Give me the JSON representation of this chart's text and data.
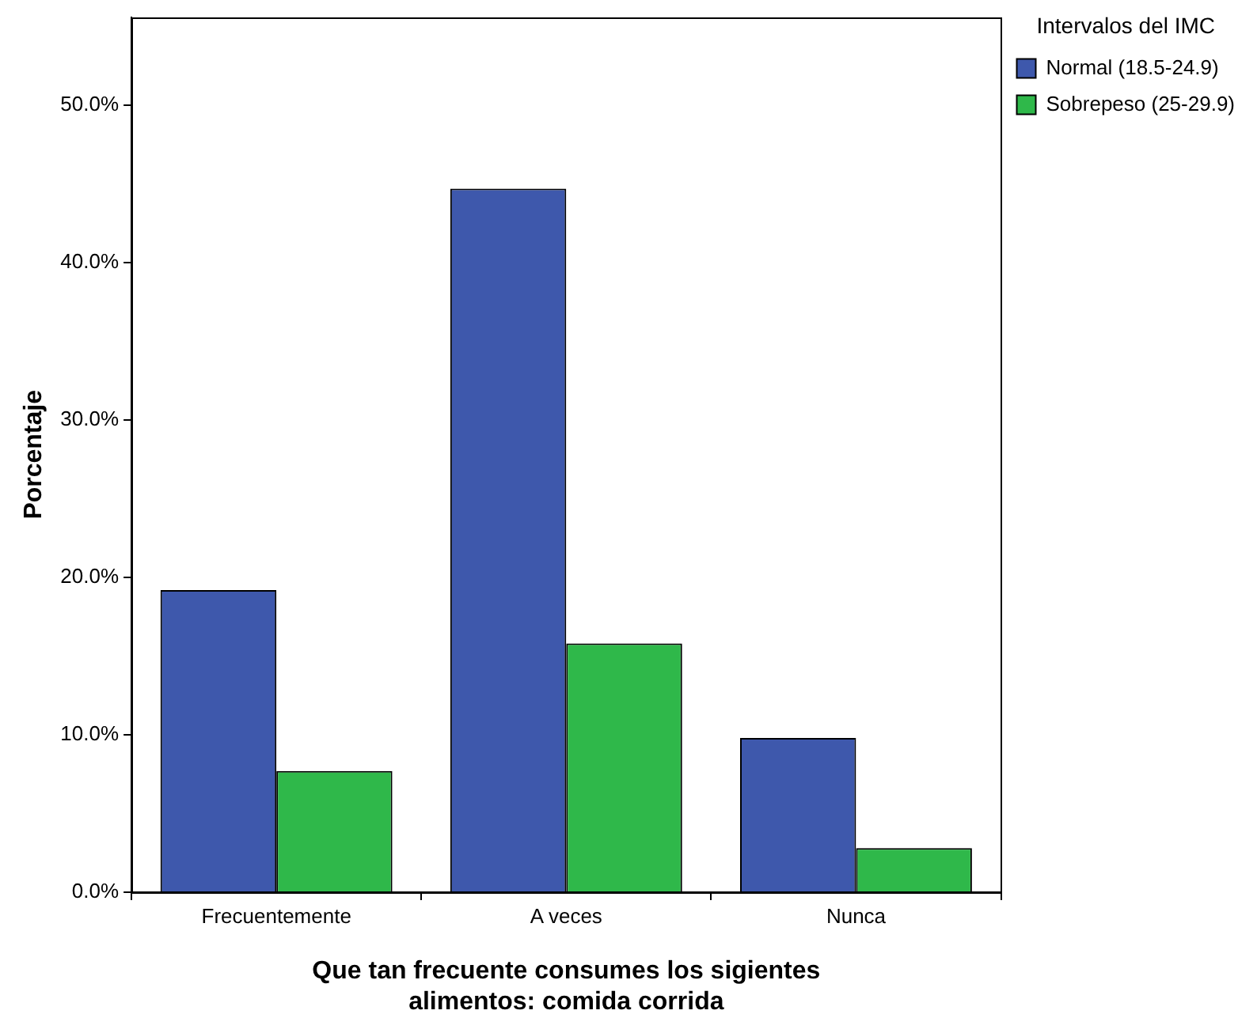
{
  "chart_data": {
    "type": "bar",
    "xlabel": "Que tan frecuente consumes los sigientes\nalimentos: comida corrida",
    "ylabel": "Porcentaje",
    "legend_title": "Intervalos del IMC",
    "categories": [
      "Frecuentemente",
      "A veces",
      "Nunca"
    ],
    "series": [
      {
        "name": "Normal (18.5-24.9)",
        "color": "#3e58ac",
        "values": [
          19.2,
          44.7,
          9.8
        ]
      },
      {
        "name": "Sobrepeso (25-29.9)",
        "color": "#2fb84a",
        "values": [
          7.7,
          15.8,
          2.8
        ]
      }
    ],
    "ylim": [
      0,
      55.6
    ],
    "yticks": [
      {
        "value": 0,
        "label": "0.0%"
      },
      {
        "value": 10,
        "label": "10.0%"
      },
      {
        "value": 20,
        "label": "20.0%"
      },
      {
        "value": 30,
        "label": "30.0%"
      },
      {
        "value": 40,
        "label": "40.0%"
      },
      {
        "value": 50,
        "label": "50.0%"
      }
    ],
    "grid": false,
    "legend": "top right"
  }
}
